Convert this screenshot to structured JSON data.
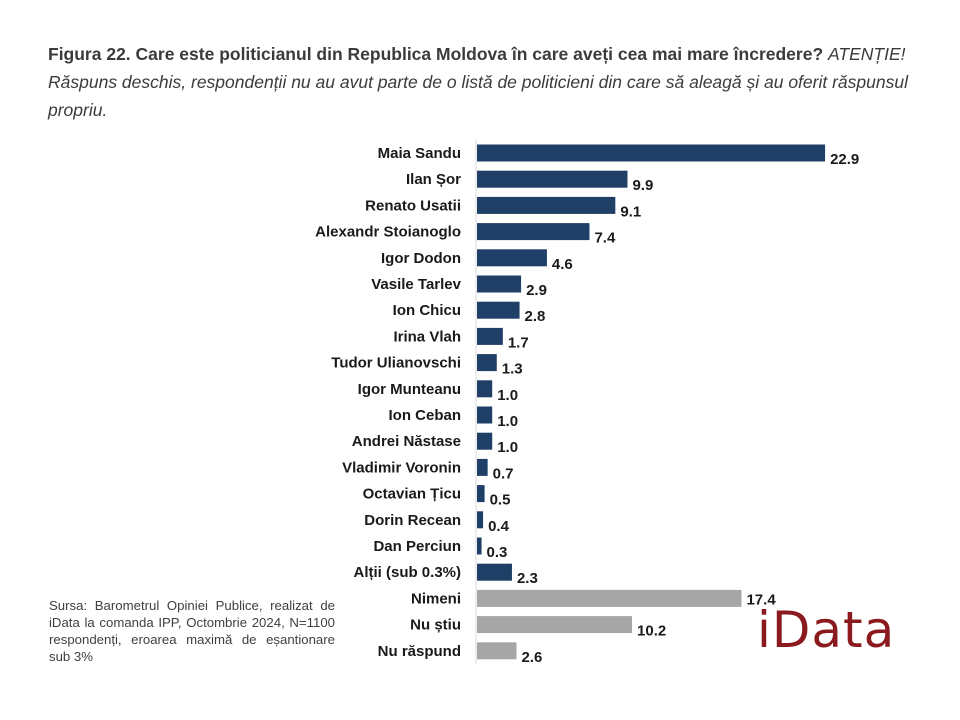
{
  "title": {
    "bold": "Figura 22. Care este politicianul din Republica Moldova în care aveți cea mai mare încredere?",
    "italic": "ATENȚIE! Răspuns deschis, respondenții nu au avut parte de o listă de politicieni din care să aleagă și au oferit răspunsul propriu."
  },
  "source": "Sursa: Barometrul Opiniei Publice, realizat de iData la comanda IPP, Octombrie 2024, N=1100 respondenți, eroarea maximă de eșantionare sub 3%",
  "logo": "iData",
  "colors": {
    "politician_bar": "#1f3f66",
    "other_bar": "#a6a6a6",
    "logo": "#8b1a1f"
  },
  "chart_data": {
    "type": "bar",
    "orientation": "horizontal",
    "title": "Figura 22. Care este politicianul din Republica Moldova în care aveți cea mai mare încredere?",
    "xlabel": "",
    "ylabel": "",
    "unit": "%",
    "xlim": [
      0,
      25
    ],
    "grid": false,
    "legend": "none",
    "categories": [
      "Maia Sandu",
      "Ilan Șor",
      "Renato Usatii",
      "Alexandr Stoianoglo",
      "Igor Dodon",
      "Vasile Tarlev",
      "Ion Chicu",
      "Irina Vlah",
      "Tudor Ulianovschi",
      "Igor Munteanu",
      "Ion Ceban",
      "Andrei Năstase",
      "Vladimir Voronin",
      "Octavian Țicu",
      "Dorin Recean",
      "Dan Perciun",
      "Alții (sub 0.3%)",
      "Nimeni",
      "Nu știu",
      "Nu răspund"
    ],
    "values": [
      22.9,
      9.9,
      9.1,
      7.4,
      4.6,
      2.9,
      2.8,
      1.7,
      1.3,
      1.0,
      1.0,
      1.0,
      0.7,
      0.5,
      0.4,
      0.3,
      2.3,
      17.4,
      10.2,
      2.6
    ],
    "labels": [
      "22.9",
      "9.9",
      "9.1",
      "7.4",
      "4.6",
      "2.9",
      "2.8",
      "1.7",
      "1.3",
      "1.0",
      "1.0",
      "1.0",
      "0.7",
      "0.5",
      "0.4",
      "0.3",
      "2.3",
      "17.4",
      "10.2",
      "2.6"
    ],
    "groups": [
      "politician",
      "politician",
      "politician",
      "politician",
      "politician",
      "politician",
      "politician",
      "politician",
      "politician",
      "politician",
      "politician",
      "politician",
      "politician",
      "politician",
      "politician",
      "politician",
      "politician",
      "other",
      "other",
      "other"
    ]
  }
}
